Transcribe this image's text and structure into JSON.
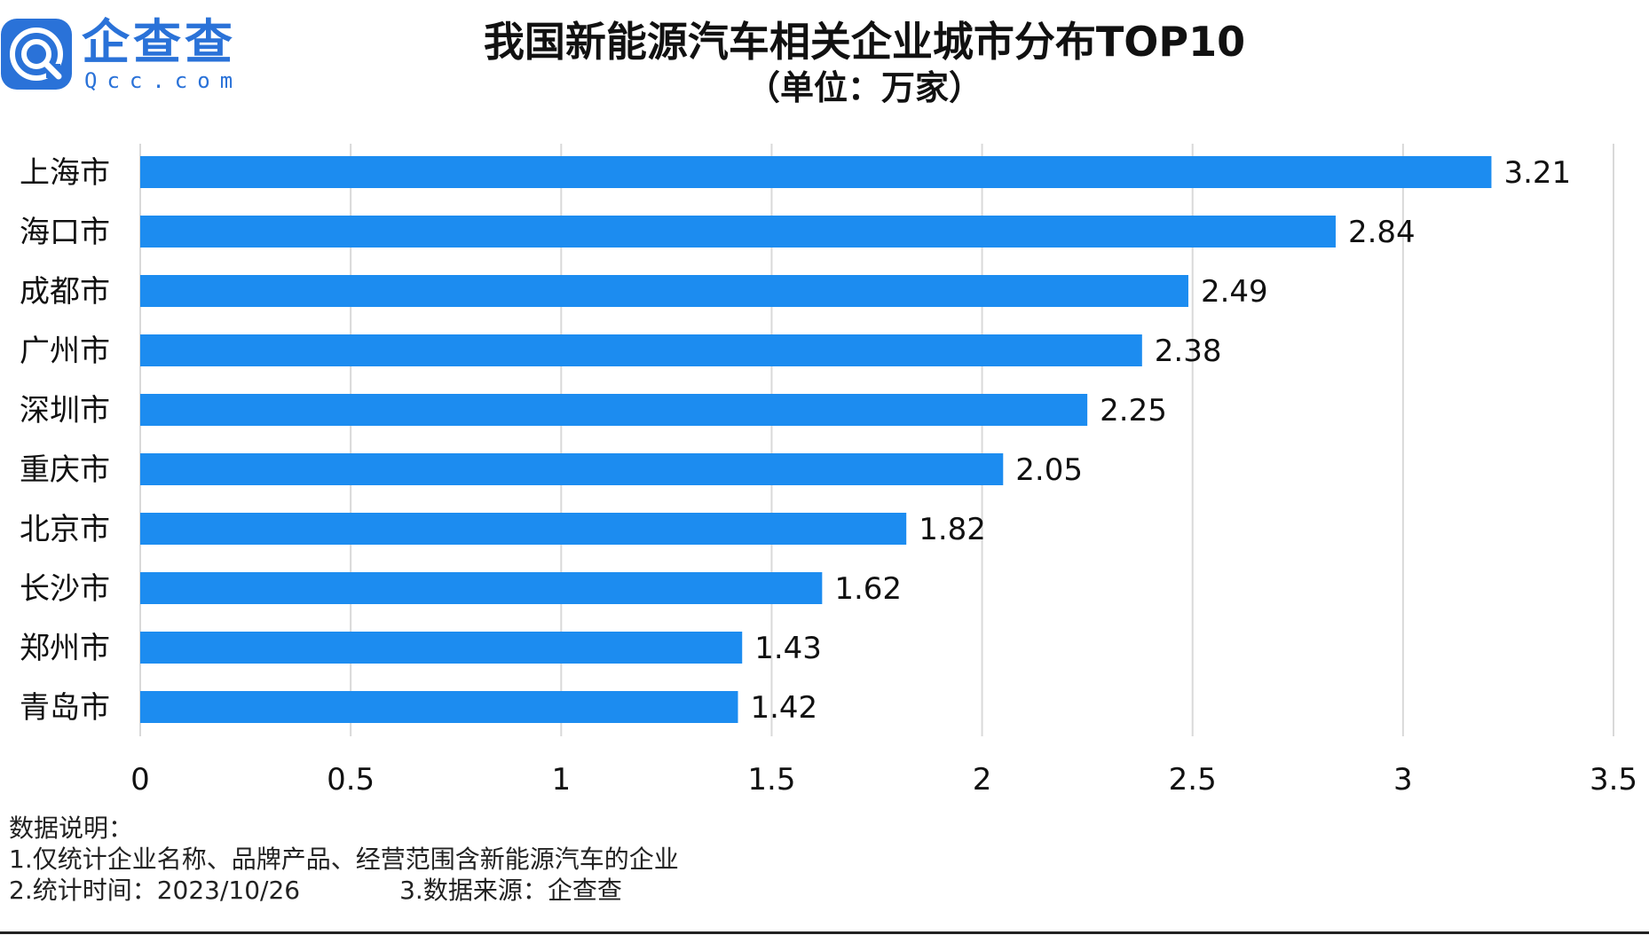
{
  "brand": {
    "name_cn": "企查查",
    "name_en": "Qcc.com",
    "color": "#2a72d8"
  },
  "header": {
    "title": "我国新能源汽车相关企业城市分布TOP10",
    "subtitle": "（单位：万家）"
  },
  "chart_data": {
    "type": "bar",
    "orientation": "horizontal",
    "categories": [
      "上海市",
      "海口市",
      "成都市",
      "广州市",
      "深圳市",
      "重庆市",
      "北京市",
      "长沙市",
      "郑州市",
      "青岛市"
    ],
    "values": [
      3.21,
      2.84,
      2.49,
      2.38,
      2.25,
      2.05,
      1.82,
      1.62,
      1.43,
      1.42
    ],
    "xlim": [
      0,
      3.5
    ],
    "xticks": [
      "0",
      "0.5",
      "1",
      "1.5",
      "2",
      "2.5",
      "3",
      "3.5"
    ],
    "grid": "vertical",
    "bar_color": "#1c8cf0",
    "data_labels": true
  },
  "notes": {
    "heading": "数据说明：",
    "line1": "1.仅统计企业名称、品牌产品、经营范围含新能源汽车的企业",
    "line2a": "2.统计时间：2023/10/26",
    "line2b": "3.数据来源：企查查"
  }
}
